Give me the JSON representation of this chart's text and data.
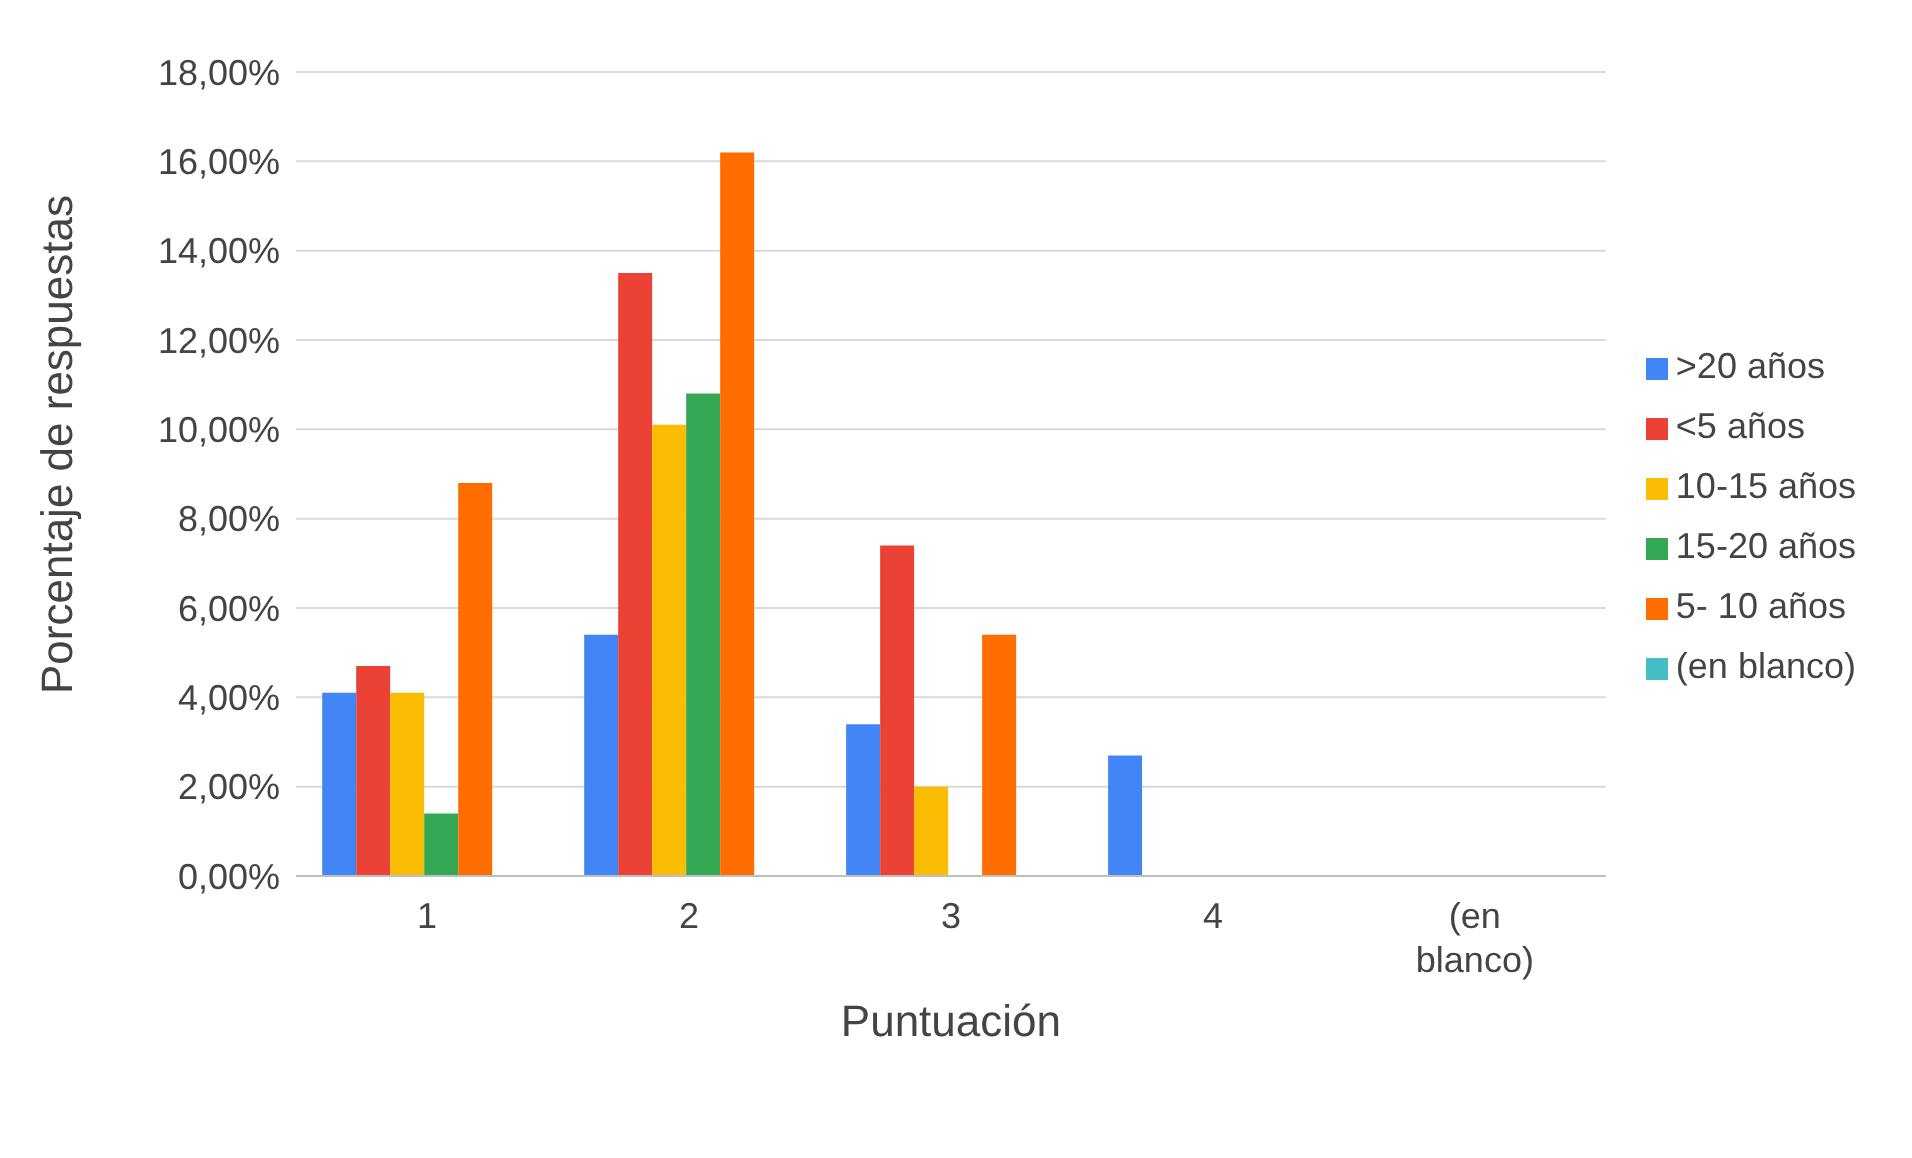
{
  "chart_data": {
    "type": "bar",
    "xlabel": "Puntuación",
    "ylabel": "Porcentaje de respuestas",
    "categories": [
      "1",
      "2",
      "3",
      "4",
      "(en blanco)"
    ],
    "series": [
      {
        "name": ">20 años",
        "color": "#4285f4",
        "values": [
          4.1,
          5.4,
          3.4,
          2.7,
          null
        ]
      },
      {
        "name": "<5 años",
        "color": "#ea4335",
        "values": [
          4.7,
          13.5,
          7.4,
          null,
          null
        ]
      },
      {
        "name": "10-15 años",
        "color": "#fbbc04",
        "values": [
          4.1,
          10.1,
          2.0,
          null,
          null
        ]
      },
      {
        "name": "15-20 años",
        "color": "#34a853",
        "values": [
          1.4,
          10.8,
          null,
          null,
          null
        ]
      },
      {
        "name": "5- 10 años",
        "color": "#ff6d01",
        "values": [
          8.8,
          16.2,
          5.4,
          null,
          null
        ]
      },
      {
        "name": "(en blanco)",
        "color": "#46bdc6",
        "values": [
          null,
          null,
          null,
          null,
          null
        ]
      }
    ],
    "ylim": [
      0,
      18
    ],
    "yticks": [
      {
        "value": 0,
        "label": "0,00%"
      },
      {
        "value": 2,
        "label": "2,00%"
      },
      {
        "value": 4,
        "label": "4,00%"
      },
      {
        "value": 6,
        "label": "6,00%"
      },
      {
        "value": 8,
        "label": "8,00%"
      },
      {
        "value": 10,
        "label": "10,00%"
      },
      {
        "value": 12,
        "label": "12,00%"
      },
      {
        "value": 14,
        "label": "14,00%"
      },
      {
        "value": 16,
        "label": "16,00%"
      },
      {
        "value": 18,
        "label": "18,00%"
      }
    ],
    "grid": "y",
    "legend": "right"
  }
}
